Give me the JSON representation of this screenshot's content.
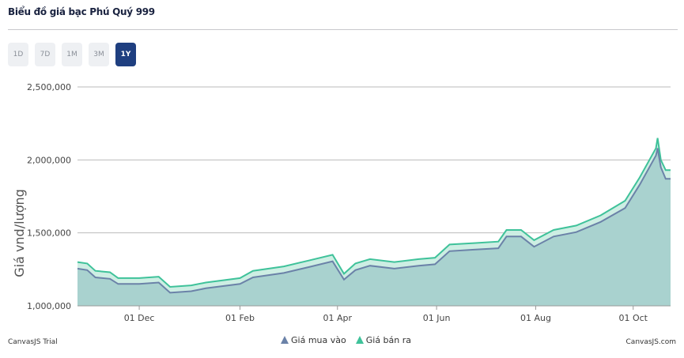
{
  "title": "Biểu đồ giá bạc Phú Quý 999",
  "ranges": [
    {
      "label": "1D",
      "active": false
    },
    {
      "label": "7D",
      "active": false
    },
    {
      "label": "1M",
      "active": false
    },
    {
      "label": "3M",
      "active": false
    },
    {
      "label": "1Y",
      "active": true
    }
  ],
  "footer": {
    "trial": "CanvasJS Trial",
    "credit": "CanvasJS.com"
  },
  "chart_data": {
    "type": "area",
    "ylabel": "Giá vnd/lượng",
    "ylim": [
      1000000,
      2500000
    ],
    "yticks": [
      {
        "v": 1000000,
        "label": "1,000,000"
      },
      {
        "v": 1500000,
        "label": "1,500,000"
      },
      {
        "v": 2000000,
        "label": "2,000,000"
      },
      {
        "v": 2500000,
        "label": "2,500,000"
      }
    ],
    "xlim": [
      0,
      365
    ],
    "xticks": [
      {
        "v": 38,
        "label": "01 Dec"
      },
      {
        "v": 100,
        "label": "01 Feb"
      },
      {
        "v": 160,
        "label": "01 Apr"
      },
      {
        "v": 221,
        "label": "01 Jun"
      },
      {
        "v": 282,
        "label": "01 Aug"
      },
      {
        "v": 342,
        "label": "01 Oct"
      }
    ],
    "grid": true,
    "legend": "bottom-center",
    "x": [
      0,
      6,
      11,
      20,
      25,
      38,
      50,
      57,
      70,
      79,
      100,
      108,
      127,
      142,
      157,
      164,
      171,
      180,
      195,
      210,
      220,
      229,
      244,
      259,
      264,
      273,
      281,
      293,
      307,
      322,
      337,
      346,
      356,
      357,
      359,
      362,
      365
    ],
    "series": [
      {
        "name": "Giá mua vào",
        "color": "#6b82a8",
        "values": [
          1255,
          1245,
          1195,
          1185,
          1150,
          1150,
          1160,
          1090,
          1100,
          1120,
          1150,
          1195,
          1225,
          1265,
          1305,
          1180,
          1245,
          1275,
          1255,
          1275,
          1285,
          1375,
          1385,
          1395,
          1475,
          1475,
          1405,
          1475,
          1505,
          1575,
          1670,
          1830,
          2030,
          2080,
          1950,
          1870,
          1870
        ]
      },
      {
        "name": "Giá bán ra",
        "color": "#3fc29a",
        "values": [
          1300,
          1290,
          1240,
          1230,
          1190,
          1190,
          1200,
          1130,
          1140,
          1160,
          1190,
          1240,
          1270,
          1310,
          1350,
          1220,
          1290,
          1320,
          1300,
          1320,
          1330,
          1420,
          1430,
          1440,
          1520,
          1520,
          1450,
          1520,
          1550,
          1620,
          1720,
          1880,
          2080,
          2150,
          2000,
          1930,
          1930
        ]
      }
    ]
  }
}
